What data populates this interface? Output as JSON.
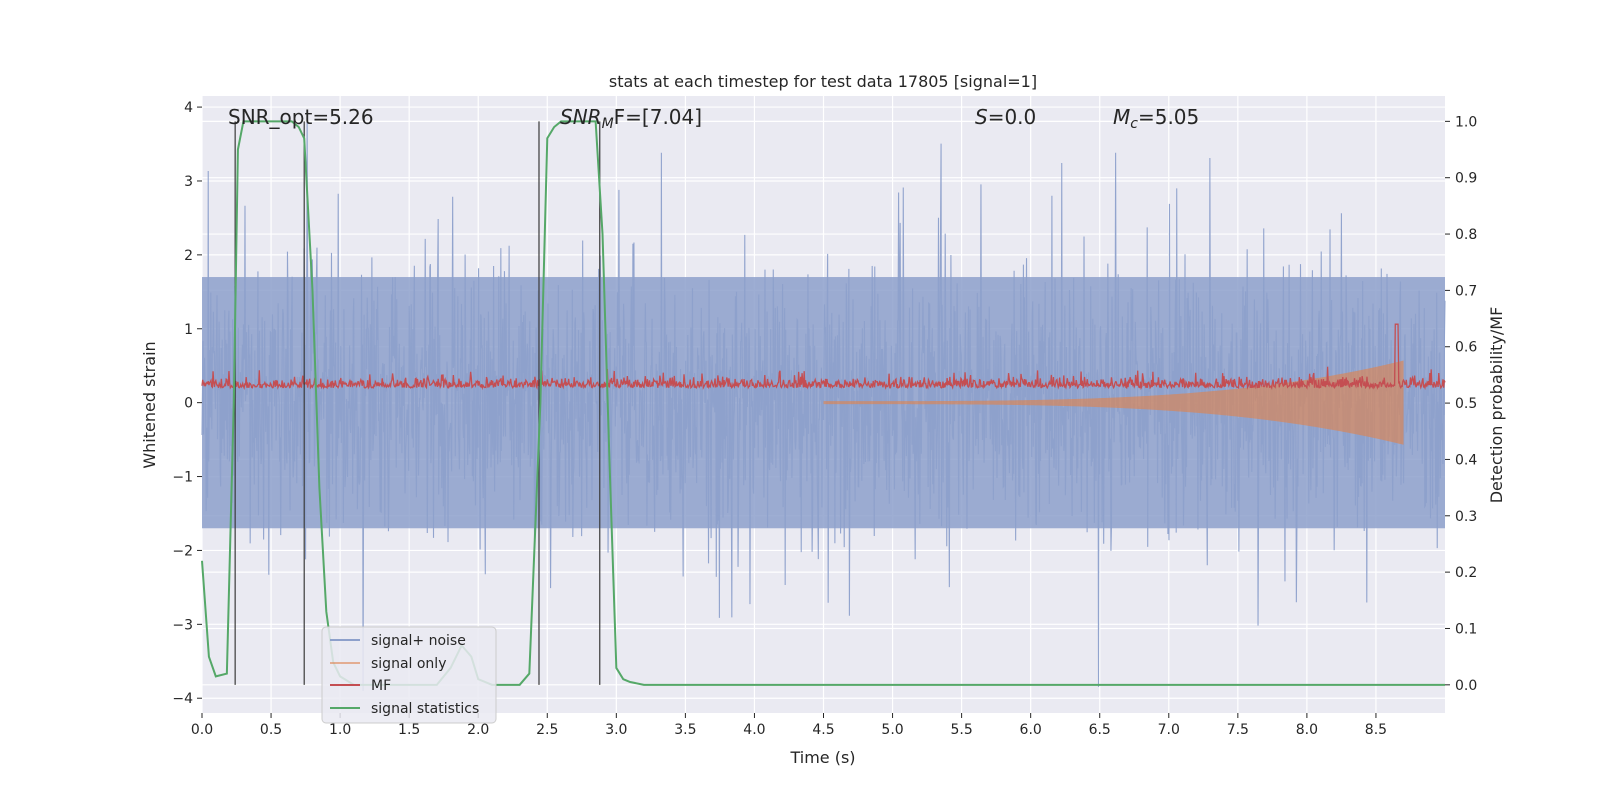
{
  "chart_data": {
    "type": "line",
    "title": "stats at each timestep for test data 17805 [signal=1]",
    "xlabel": "Time (s)",
    "ylabel_left": "Whitened strain",
    "ylabel_right": "Detection probability/MF",
    "xlim": [
      0.0,
      9.0
    ],
    "ylim_left": [
      -4.2,
      4.15
    ],
    "ylim_right": [
      -0.05,
      1.045
    ],
    "x_ticks": [
      "0.0",
      "0.5",
      "1.0",
      "1.5",
      "2.0",
      "2.5",
      "3.0",
      "3.5",
      "4.0",
      "4.5",
      "5.0",
      "5.5",
      "6.0",
      "6.5",
      "7.0",
      "7.5",
      "8.0",
      "8.5"
    ],
    "y_left_ticks": [
      "−4",
      "−3",
      "−2",
      "−1",
      "0",
      "1",
      "2",
      "3",
      "4"
    ],
    "y_right_ticks": [
      "0.0",
      "0.1",
      "0.2",
      "0.3",
      "0.4",
      "0.5",
      "0.6",
      "0.7",
      "0.8",
      "0.9",
      "1.0"
    ],
    "grid": true,
    "annotations": {
      "snr_opt": "SNR_opt=5.26",
      "snr_mf_main": "SNR",
      "snr_mf_sub": "M",
      "snr_mf_rest": "F=[7.04]",
      "s_main": "S",
      "s_rest": "=0.0",
      "mc_main": "M",
      "mc_sub": "c",
      "mc_rest": "=5.05"
    },
    "legend": {
      "placement": "lower-left",
      "entries": [
        "signal+ noise",
        "signal only",
        "MF",
        "signal statistics"
      ]
    },
    "detection_window_lines_s": [
      0.24,
      0.74,
      2.44,
      2.88
    ],
    "series": [
      {
        "name": "signal statistics",
        "axis": "right",
        "color": "#55a868",
        "x": [
          0.0,
          0.05,
          0.1,
          0.18,
          0.23,
          0.26,
          0.3,
          0.35,
          0.5,
          0.65,
          0.7,
          0.74,
          0.8,
          0.85,
          0.9,
          0.95,
          1.0,
          1.1,
          1.3,
          1.5,
          1.7,
          1.8,
          1.88,
          1.95,
          2.0,
          2.1,
          2.2,
          2.3,
          2.37,
          2.45,
          2.5,
          2.55,
          2.6,
          2.7,
          2.85,
          2.9,
          2.95,
          3.0,
          3.05,
          3.1,
          3.2,
          3.5,
          9.0
        ],
        "y": [
          0.22,
          0.05,
          0.015,
          0.02,
          0.5,
          0.95,
          1.0,
          1.0,
          1.0,
          1.0,
          0.99,
          0.97,
          0.7,
          0.35,
          0.13,
          0.04,
          0.015,
          0.0,
          0.0,
          0.0,
          0.0,
          0.03,
          0.07,
          0.05,
          0.01,
          0.0,
          0.0,
          0.0,
          0.02,
          0.5,
          0.97,
          0.99,
          1.0,
          1.0,
          1.0,
          0.8,
          0.4,
          0.03,
          0.01,
          0.005,
          0.0,
          0.0,
          0.0
        ]
      },
      {
        "name": "signal+ noise",
        "axis": "left",
        "color": "#8da0cb",
        "noise_band": [
          -1.7,
          1.7
        ],
        "peak_range": [
          -3.9,
          3.9
        ]
      },
      {
        "name": "MF",
        "axis": "right",
        "color": "#c44e52",
        "baseline": 0.53,
        "spike": {
          "x": 8.65,
          "y": 0.64
        }
      },
      {
        "name": "signal only",
        "axis": "left",
        "color": "#dd8452",
        "chirp_end_s": 8.7,
        "max_amplitude": 0.55
      }
    ]
  }
}
